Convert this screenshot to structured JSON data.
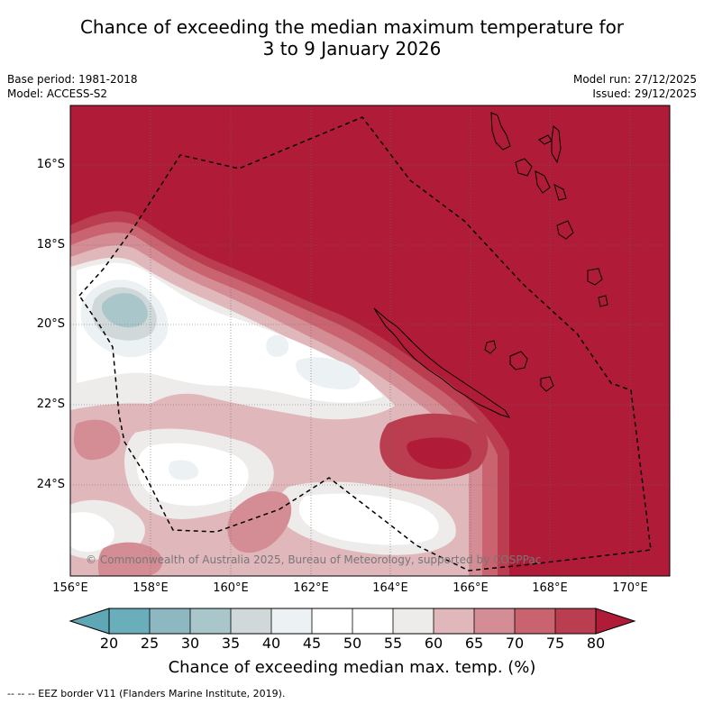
{
  "title": {
    "line1": "Chance of exceeding the median maximum temperature for",
    "line2": "3 to 9 January 2026"
  },
  "meta_left": {
    "base_period": "Base period: 1981-2018",
    "model": "Model: ACCESS-S2"
  },
  "meta_right": {
    "model_run": "Model run: 27/12/2025",
    "issued": "Issued: 29/12/2025"
  },
  "latitude_labels": [
    "16°S",
    "18°S",
    "20°S",
    "22°S",
    "24°S"
  ],
  "longitude_labels": [
    "156°E",
    "158°E",
    "160°E",
    "162°E",
    "164°E",
    "166°E",
    "168°E",
    "170°E"
  ],
  "credit": "© Commonwealth of Australia 2025, Bureau of Meteorology, supported by COSPPac",
  "colorbar": {
    "ticks": [
      "20",
      "25",
      "30",
      "35",
      "40",
      "45",
      "50",
      "55",
      "60",
      "65",
      "70",
      "75",
      "80"
    ],
    "colors": [
      "#5fa7b5",
      "#6aadbb",
      "#8db8c2",
      "#a9c7cb",
      "#d0d8da",
      "#ecf1f3",
      "#ffffff",
      "#ffffff",
      "#eeeceb",
      "#e0b8bc",
      "#d58d95",
      "#c8636f",
      "#bb3e50",
      "#b01c38"
    ],
    "title": "Chance of exceeding median max. temp. (%)"
  },
  "footnote": "--  --  -- EEZ border V11 (Flanders Marine Institute, 2019).",
  "colors": {
    "high": "#b01c38",
    "c75": "#bb3e50",
    "c70": "#c8636f",
    "c65": "#d58d95",
    "c60": "#e0b8bc",
    "c55": "#eeeceb",
    "c40": "#ecf1f3",
    "c35": "#d0d8da",
    "c30": "#a9c7cb"
  }
}
